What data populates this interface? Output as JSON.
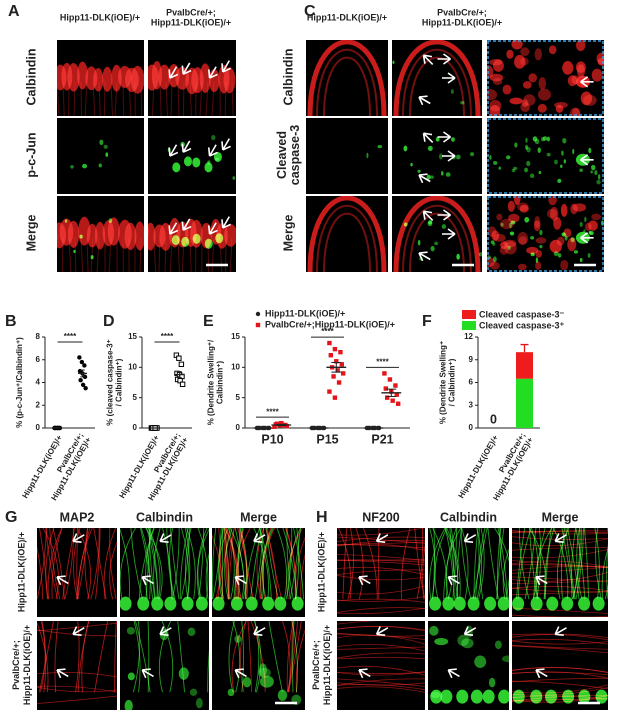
{
  "panels": {
    "A": {
      "letter": "A",
      "columns": [
        "Hipp11-DLK(iOE)/+",
        [
          "PvalbCre/+;",
          "Hipp11-DLK(iOE)/+"
        ]
      ],
      "rows": [
        "Calbindin",
        "p-c-Jun",
        "Merge"
      ],
      "row_colors": [
        "#e3151a",
        "#1fa61f",
        "#222222"
      ]
    },
    "C": {
      "letter": "C",
      "columns": [
        "Hipp11-DLK(iOE)/+",
        [
          "PvalbCre/+;",
          "Hipp11-DLK(iOE)/+"
        ]
      ],
      "rows": [
        "Calbindin",
        [
          "Cleaved",
          "caspase-3"
        ],
        "Merge"
      ],
      "row_colors": [
        "#e3151a",
        "#1fa61f",
        "#222222"
      ]
    },
    "G": {
      "letter": "G",
      "columns": [
        "MAP2",
        "Calbindin",
        "Merge"
      ],
      "column_colors": [
        "#e3151a",
        "#1fa61f",
        "#222222"
      ],
      "rows": [
        "Hipp11-DLK(iOE)/+",
        [
          "PvalbCre/+;",
          "Hipp11-DLK(iOE)/+"
        ]
      ]
    },
    "H": {
      "letter": "H",
      "columns": [
        "NF200",
        "Calbindin",
        "Merge"
      ],
      "column_colors": [
        "#e3151a",
        "#1fa61f",
        "#222222"
      ],
      "rows": [
        "Hipp11-DLK(iOE)/+",
        [
          "PvalbCre/+;",
          "Hipp11-DLK(iOE)/+"
        ]
      ]
    }
  },
  "chart_data": [
    {
      "type": "dot",
      "letter": "B",
      "ylabel": "% (p-c-Jun⁺/Calbindin⁺)",
      "categories": [
        "Hipp11-DLK(iOE)/+",
        [
          "PvalbCre/+;",
          "Hipp11-DLK(iOE)/+"
        ]
      ],
      "series": [
        {
          "color": "#000000",
          "marker": "circle",
          "values": [
            [
              0,
              0,
              0,
              0,
              0,
              0,
              0,
              0
            ],
            [
              6.2,
              5.8,
              5.5,
              5,
              4.8,
              4.5,
              4.2,
              3.8,
              3.5
            ]
          ],
          "means": [
            0,
            4.8
          ],
          "errors": [
            0,
            0.3
          ]
        }
      ],
      "ylim": [
        0,
        8
      ],
      "yticks": [
        0,
        2,
        4,
        6,
        8
      ],
      "significance": "****"
    },
    {
      "type": "dot",
      "letter": "D",
      "ylabel": [
        "% (cleaved caspase-3⁺",
        "/ Calbindin⁺)"
      ],
      "categories": [
        "Hipp11-DLK(iOE)/+",
        [
          "PvalbCre/+;",
          "Hipp11-DLK(iOE)/+"
        ]
      ],
      "series": [
        {
          "color": "#000000",
          "marker": "square-open",
          "values": [
            [
              0,
              0,
              0,
              0,
              0,
              0,
              0,
              0
            ],
            [
              12,
              11.5,
              10.5,
              9,
              8.8,
              8.5,
              8,
              7.8,
              7.2
            ]
          ],
          "means": [
            0,
            8.8
          ],
          "errors": [
            0,
            0.5
          ]
        }
      ],
      "ylim": [
        0,
        15
      ],
      "yticks": [
        0,
        5,
        10,
        15
      ],
      "significance": "****"
    },
    {
      "type": "dot",
      "letter": "E",
      "ylabel": [
        "% (Dendrite Swelling⁺/",
        "Calbindin⁺)"
      ],
      "categories": [
        "P10",
        "P15",
        "P21"
      ],
      "series": [
        {
          "name": "Hipp11-DLK(iOE)/+",
          "color": "#222222",
          "marker": "circle",
          "values": [
            [
              0,
              0,
              0,
              0,
              0,
              0,
              0,
              0
            ],
            [
              0,
              0,
              0,
              0,
              0,
              0,
              0,
              0
            ],
            [
              0,
              0,
              0,
              0,
              0,
              0,
              0,
              0
            ]
          ],
          "means": [
            0,
            0,
            0
          ],
          "errors": [
            0,
            0,
            0
          ]
        },
        {
          "name": "PvalbCre/+;Hipp11-DLK(iOE)/+",
          "color": "#e3151a",
          "marker": "square",
          "values": [
            [
              0.2,
              0.4,
              0.5,
              0.6,
              0.8,
              0.3,
              0.7,
              0.5
            ],
            [
              14,
              13,
              12.5,
              12,
              11,
              10.5,
              10,
              9.5,
              9,
              8.5,
              7.5,
              6,
              5
            ],
            [
              9,
              8,
              7,
              6.5,
              6,
              5.5,
              5,
              4.5,
              4
            ]
          ],
          "means": [
            0.5,
            10,
            5.8
          ],
          "errors": [
            0.1,
            0.8,
            0.6
          ]
        }
      ],
      "ylim": [
        0,
        15
      ],
      "yticks": [
        0,
        5,
        10,
        15
      ],
      "significance": [
        "****",
        "****",
        "****"
      ]
    },
    {
      "type": "stacked",
      "letter": "F",
      "ylabel": [
        "% (Dendrite Swelling⁺",
        "/ Calbindin⁺)"
      ],
      "categories": [
        "Hipp11-DLK(iOE)/+",
        [
          "PvalbCre/+;",
          "Hipp11-DLK(iOE)/+"
        ]
      ],
      "series": [
        {
          "name": "Cleaved caspase-3⁻",
          "color": "#ee1c1c",
          "values": [
            0,
            3.5
          ],
          "errors": [
            null,
            1
          ]
        },
        {
          "name": "Cleaved caspase-3⁺",
          "color": "#22dd22",
          "values": [
            0,
            6.5
          ],
          "errors": [
            null,
            0.6
          ],
          "value_labels": [
            "0",
            null
          ]
        }
      ],
      "ylim": [
        0,
        12
      ],
      "yticks": [
        0,
        3,
        6,
        9,
        12
      ]
    }
  ]
}
